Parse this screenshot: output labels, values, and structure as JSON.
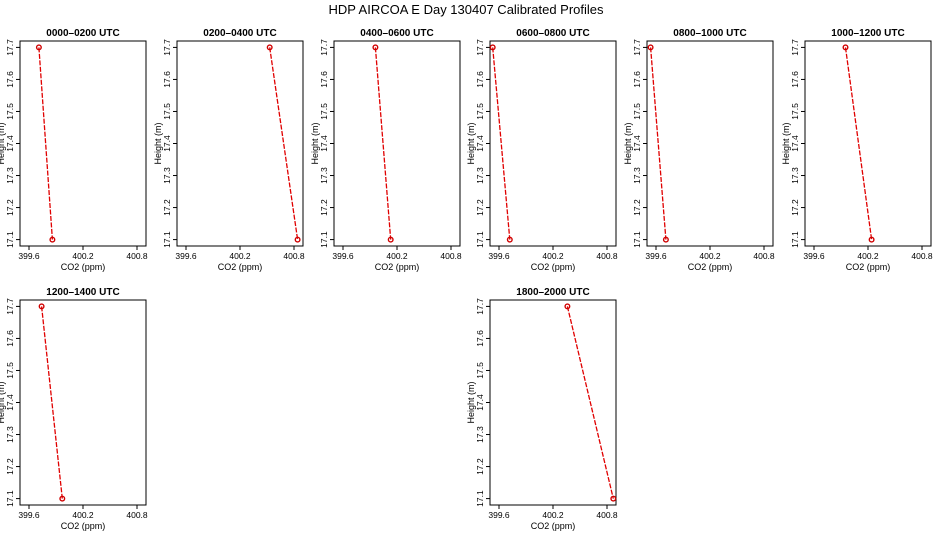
{
  "title": "HDP AIRCOA E  Day 130407  Calibrated Profiles",
  "chart_data": [
    {
      "type": "line",
      "title": "0000–0200 UTC",
      "xlabel": "CO2 (ppm)",
      "ylabel": "Height (m)",
      "xlim": [
        399.5,
        400.9
      ],
      "ylim": [
        17.08,
        17.72
      ],
      "xticks": [
        "399.6",
        "400.2",
        "400.8"
      ],
      "yticks": [
        "17.1",
        "17.2",
        "17.3",
        "17.4",
        "17.5",
        "17.6",
        "17.7"
      ],
      "line_color": "#e00000",
      "point_color": "#d00000",
      "points": [
        {
          "x": 399.71,
          "y": 17.7
        },
        {
          "x": 399.86,
          "y": 17.1
        }
      ]
    },
    {
      "type": "line",
      "title": "0200–0400 UTC",
      "xlabel": "CO2 (ppm)",
      "ylabel": "Height (m)",
      "xlim": [
        399.5,
        400.9
      ],
      "ylim": [
        17.08,
        17.72
      ],
      "xticks": [
        "399.6",
        "400.2",
        "400.8"
      ],
      "yticks": [
        "17.1",
        "17.2",
        "17.3",
        "17.4",
        "17.5",
        "17.6",
        "17.7"
      ],
      "line_color": "#e00000",
      "point_color": "#d00000",
      "points": [
        {
          "x": 400.53,
          "y": 17.7
        },
        {
          "x": 400.84,
          "y": 17.1
        }
      ]
    },
    {
      "type": "line",
      "title": "0400–0600 UTC",
      "xlabel": "CO2 (ppm)",
      "ylabel": "Height (m)",
      "xlim": [
        399.5,
        400.9
      ],
      "ylim": [
        17.08,
        17.72
      ],
      "xticks": [
        "399.6",
        "400.2",
        "400.8"
      ],
      "yticks": [
        "17.1",
        "17.2",
        "17.3",
        "17.4",
        "17.5",
        "17.6",
        "17.7"
      ],
      "line_color": "#e00000",
      "point_color": "#d00000",
      "points": [
        {
          "x": 399.96,
          "y": 17.7
        },
        {
          "x": 400.13,
          "y": 17.1
        }
      ]
    },
    {
      "type": "line",
      "title": "0600–0800 UTC",
      "xlabel": "CO2 (ppm)",
      "ylabel": "Height (m)",
      "xlim": [
        399.5,
        400.9
      ],
      "ylim": [
        17.08,
        17.72
      ],
      "xticks": [
        "399.6",
        "400.2",
        "400.8"
      ],
      "yticks": [
        "17.1",
        "17.2",
        "17.3",
        "17.4",
        "17.5",
        "17.6",
        "17.7"
      ],
      "line_color": "#e00000",
      "point_color": "#d00000",
      "points": [
        {
          "x": 399.53,
          "y": 17.7
        },
        {
          "x": 399.72,
          "y": 17.1
        }
      ]
    },
    {
      "type": "line",
      "title": "0800–1000 UTC",
      "xlabel": "CO2 (ppm)",
      "ylabel": "Height (m)",
      "xlim": [
        399.5,
        400.9
      ],
      "ylim": [
        17.08,
        17.72
      ],
      "xticks": [
        "399.6",
        "400.2",
        "400.8"
      ],
      "yticks": [
        "17.1",
        "17.2",
        "17.3",
        "17.4",
        "17.5",
        "17.6",
        "17.7"
      ],
      "line_color": "#e00000",
      "point_color": "#d00000",
      "points": [
        {
          "x": 399.54,
          "y": 17.7
        },
        {
          "x": 399.71,
          "y": 17.1
        }
      ]
    },
    {
      "type": "line",
      "title": "1000–1200 UTC",
      "xlabel": "CO2 (ppm)",
      "ylabel": "Height (m)",
      "xlim": [
        399.5,
        400.9
      ],
      "ylim": [
        17.08,
        17.72
      ],
      "xticks": [
        "399.6",
        "400.2",
        "400.8"
      ],
      "yticks": [
        "17.1",
        "17.2",
        "17.3",
        "17.4",
        "17.5",
        "17.6",
        "17.7"
      ],
      "line_color": "#e00000",
      "point_color": "#d00000",
      "points": [
        {
          "x": 399.95,
          "y": 17.7
        },
        {
          "x": 400.24,
          "y": 17.1
        }
      ]
    },
    {
      "type": "line",
      "title": "1200–1400 UTC",
      "xlabel": "CO2 (ppm)",
      "ylabel": "Height (m)",
      "xlim": [
        399.5,
        400.9
      ],
      "ylim": [
        17.08,
        17.72
      ],
      "xticks": [
        "399.6",
        "400.2",
        "400.8"
      ],
      "yticks": [
        "17.1",
        "17.2",
        "17.3",
        "17.4",
        "17.5",
        "17.6",
        "17.7"
      ],
      "line_color": "#e00000",
      "point_color": "#d00000",
      "points": [
        {
          "x": 399.74,
          "y": 17.7
        },
        {
          "x": 399.97,
          "y": 17.1
        }
      ]
    },
    {
      "type": "line",
      "title": "1800–2000 UTC",
      "xlabel": "CO2 (ppm)",
      "ylabel": "Height (m)",
      "xlim": [
        399.5,
        400.9
      ],
      "ylim": [
        17.08,
        17.72
      ],
      "xticks": [
        "399.6",
        "400.2",
        "400.8"
      ],
      "yticks": [
        "17.1",
        "17.2",
        "17.3",
        "17.4",
        "17.5",
        "17.6",
        "17.7"
      ],
      "line_color": "#e00000",
      "point_color": "#d00000",
      "points": [
        {
          "x": 400.36,
          "y": 17.7
        },
        {
          "x": 400.87,
          "y": 17.1
        }
      ]
    }
  ]
}
